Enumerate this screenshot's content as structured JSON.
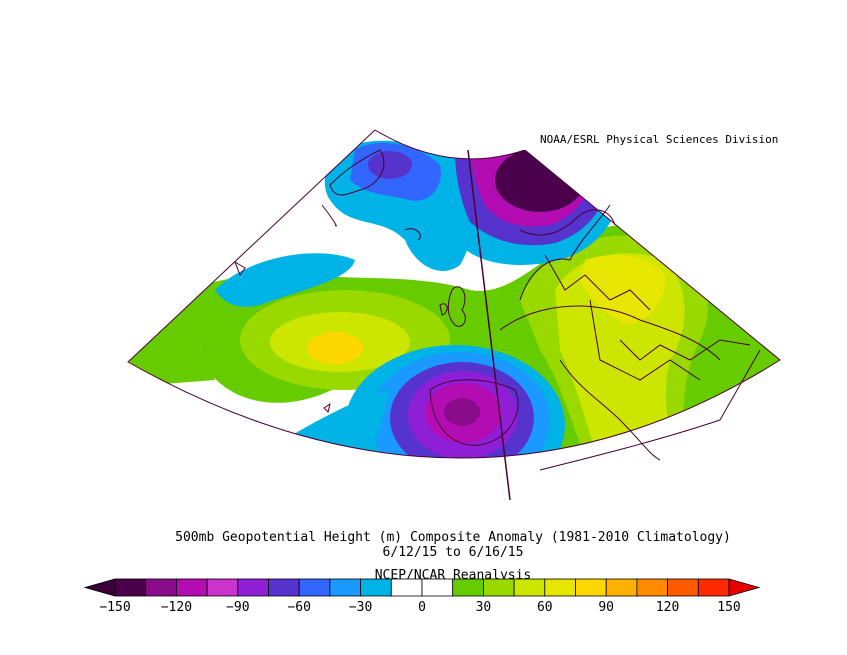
{
  "credit": "NOAA/ESRL Physical Sciences Division",
  "title_line1": "500mb Geopotential Height (m) Composite Anomaly (1981-2010 Climatology)",
  "title_line2": "6/12/15  to 6/16/15",
  "source": "NCEP/NCAR Reanalysis",
  "colorbar": {
    "tick_labels": [
      "-150",
      "-120",
      "-90",
      "-60",
      "-30",
      "0",
      "30",
      "60",
      "90",
      "120",
      "150"
    ],
    "colors": [
      "#4a004a",
      "#8a0c8a",
      "#b30cb3",
      "#cc33cc",
      "#8f1fd6",
      "#5533cc",
      "#3366ff",
      "#1a99ff",
      "#00b3e6",
      "#ffffff",
      "#ffffff",
      "#66cc00",
      "#99d900",
      "#cce600",
      "#e6e600",
      "#ffd700",
      "#ffb000",
      "#ff8a00",
      "#ff5a00",
      "#ff2a00"
    ],
    "under_color": "#3a003a",
    "over_color": "#e60000"
  },
  "anomaly_colors": {
    "deep_negative": "#4a004a",
    "strong_negative": "#8a0c8a",
    "negative": "#b30cb3",
    "moderate_negative": "#8f1fd6",
    "blue": "#3366ff",
    "light_blue": "#1a99ff",
    "cyan": "#00b3e6",
    "neutral": "#ffffff",
    "green": "#66cc00",
    "yellow_green": "#99d900",
    "lime": "#cce600",
    "yellow": "#e6e600",
    "gold": "#ffd700"
  }
}
